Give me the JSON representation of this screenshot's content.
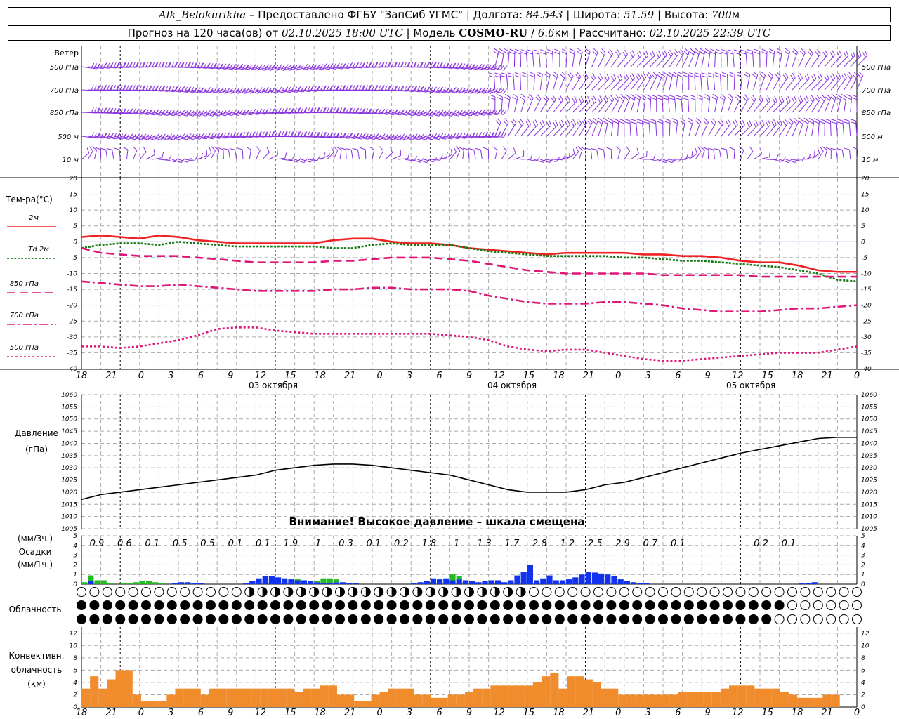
{
  "header": {
    "station": "Alk_Belokurikha",
    "provider": " – Предоставлено ФГБУ \"ЗапСиб УГМС\" | Долгота: ",
    "lon": "84.543",
    "lat_label": " | Широта: ",
    "lat": "51.59",
    "alt_label": " | Высота: ",
    "alt": "700",
    "alt_unit": "м",
    "line2_a": "Прогноз на 120 часа(ов) от ",
    "issued": "02.10.2025 18:00 UTC",
    "line2_b": " | Модель ",
    "model": "COSMO-RU",
    "line2_c": " / ",
    "res": "6.6",
    "res_unit": "км",
    "line2_d": " | Рассчитано: ",
    "computed": "02.10.2025 22:39 UTC"
  },
  "wind": {
    "title": "Ветер",
    "levels": [
      "500 гПа",
      "700 гПа",
      "850 гПа",
      "500 м",
      "10  м"
    ]
  },
  "temperature": {
    "title": "Тем-ра(°С)",
    "legend": [
      {
        "label": "2м",
        "color": "#ee2222",
        "dash": ""
      },
      {
        "label": "Td  2м",
        "color": "#117711",
        "dash": "3,2"
      },
      {
        "label": "850 гПа",
        "color": "#e0157a",
        "dash": "12,6"
      },
      {
        "label": "700 гПа",
        "color": "#e0157a",
        "dash": "12,4,3,4"
      },
      {
        "label": "500 гПа",
        "color": "#e0157a",
        "dash": "3,3"
      }
    ],
    "ticks": [
      20,
      15,
      10,
      5,
      0,
      -5,
      -10,
      -15,
      -20,
      -25,
      -30,
      -35,
      -40
    ]
  },
  "time_axis": {
    "hour_labels": [
      "18",
      "21",
      "0",
      "3",
      "6",
      "9",
      "12",
      "15",
      "18",
      "21",
      "0",
      "3",
      "6",
      "9",
      "12",
      "15",
      "18",
      "21",
      "0",
      "3",
      "6",
      "9",
      "12",
      "15",
      "18",
      "21",
      "0"
    ],
    "days": [
      "03 октября",
      "04 октября",
      "05 октября"
    ]
  },
  "pressure": {
    "title_1": "Давление",
    "title_2": "(гПа)",
    "notice": "Внимание! Высокое давление – шкала смещена",
    "ticks": [
      1060,
      1055,
      1050,
      1045,
      1040,
      1035,
      1030,
      1025,
      1020,
      1015,
      1010,
      1005
    ]
  },
  "precip": {
    "label_3h": "(мм/3ч.)",
    "title": "Осадки",
    "label_1h": "(мм/1ч.)",
    "ticks": [
      5,
      4,
      3,
      2,
      1,
      0
    ],
    "totals": [
      "0.9",
      "0.6",
      "0.1",
      "0.5",
      "0.5",
      "0.1",
      "0.1",
      "1.9",
      "1",
      "0.3",
      "0.1",
      "0.2",
      "1.8",
      "1",
      "1.3",
      "1.7",
      "2.8",
      "1.2",
      "2.5",
      "2.9",
      "0.7",
      "0.1",
      "",
      "",
      "0.2",
      "0.1",
      "",
      ""
    ]
  },
  "cloud": {
    "title": "Облачность"
  },
  "convective": {
    "title_1": "Конвективн.",
    "title_2": "облачность",
    "title_3": "(км)",
    "ticks": [
      12,
      10,
      8,
      6,
      4,
      2,
      0
    ]
  },
  "chart_data": [
    {
      "type": "line",
      "title": "Тем-ра(°С)",
      "x_hours": [
        0,
        3,
        6,
        9,
        12,
        15,
        18,
        21,
        24,
        27,
        30,
        33,
        36,
        39,
        42,
        45,
        48,
        51,
        54,
        57,
        60,
        63,
        66,
        69,
        72,
        75,
        78,
        81,
        84,
        87,
        90,
        93,
        96,
        99,
        102,
        105,
        108,
        111,
        114,
        117,
        120
      ],
      "ylim": [
        -40,
        20
      ],
      "series": [
        {
          "name": "2м",
          "values": [
            1.5,
            2,
            1.5,
            1,
            2,
            1.5,
            0.5,
            0,
            -0.5,
            -0.5,
            -0.5,
            -0.5,
            -0.5,
            0.5,
            1,
            1,
            0,
            -0.5,
            -0.5,
            -1,
            -2,
            -2.5,
            -3,
            -3.5,
            -4,
            -3.5,
            -3.5,
            -3.5,
            -3.5,
            -4,
            -4,
            -4.5,
            -4.5,
            -5,
            -6,
            -6.5,
            -6.5,
            -7.5,
            -9,
            -9.5,
            -9.5
          ]
        },
        {
          "name": "Td  2м",
          "values": [
            -2,
            -1,
            -0.5,
            -0.5,
            -1,
            0,
            -0.5,
            -1,
            -1.5,
            -1.5,
            -1.5,
            -1.5,
            -1.5,
            -2,
            -2,
            -1,
            -0.5,
            -1,
            -1,
            -1,
            -2,
            -3,
            -3.5,
            -4,
            -4.5,
            -4.5,
            -4.5,
            -4.5,
            -5,
            -5,
            -5.5,
            -6,
            -6,
            -6.5,
            -7,
            -7.5,
            -8,
            -9,
            -10,
            -12,
            -12.5
          ]
        },
        {
          "name": "850 гПа",
          "values": [
            -2,
            -3.5,
            -4,
            -4.5,
            -4.5,
            -4.5,
            -5,
            -5.5,
            -6,
            -6.5,
            -6.5,
            -6.5,
            -6.5,
            -6,
            -6,
            -5.5,
            -5,
            -5,
            -5,
            -5.5,
            -6,
            -7,
            -8,
            -9,
            -9.5,
            -10,
            -10,
            -10,
            -10,
            -10,
            -10.5,
            -10.5,
            -10.5,
            -10.5,
            -10.5,
            -11,
            -11,
            -11,
            -11,
            -11,
            -11
          ]
        },
        {
          "name": "700 гПа",
          "values": [
            -12.5,
            -13,
            -13.5,
            -14,
            -14,
            -13.5,
            -14,
            -14.5,
            -15,
            -15.5,
            -15.5,
            -15.5,
            -15.5,
            -15,
            -15,
            -14.5,
            -14.5,
            -15,
            -15,
            -15,
            -15.5,
            -17,
            -18,
            -19,
            -19.5,
            -19.5,
            -19.5,
            -19,
            -19,
            -19.5,
            -20,
            -21,
            -21.5,
            -22,
            -22,
            -22,
            -21.5,
            -21,
            -21,
            -20.5,
            -20
          ]
        },
        {
          "name": "500 гПа",
          "values": [
            -33,
            -33,
            -33.5,
            -33,
            -32,
            -31,
            -29.5,
            -27.5,
            -27,
            -27,
            -28,
            -28.5,
            -29,
            -29,
            -29,
            -29,
            -29,
            -29,
            -29,
            -29.5,
            -30,
            -31,
            -33,
            -34,
            -34.5,
            -34,
            -34,
            -35,
            -36,
            -37,
            -37.5,
            -37.5,
            -37,
            -36.5,
            -36,
            -35.5,
            -35,
            -35,
            -35,
            -34,
            -33
          ]
        }
      ]
    },
    {
      "type": "line",
      "title": "Давление",
      "x_hours": [
        0,
        3,
        6,
        9,
        12,
        15,
        18,
        21,
        24,
        27,
        30,
        33,
        36,
        39,
        42,
        45,
        48,
        51,
        54,
        57,
        60,
        63,
        66,
        69,
        72,
        75,
        78,
        81,
        84,
        87,
        90,
        93,
        96,
        99,
        102,
        105,
        108,
        111,
        114,
        117,
        120
      ],
      "ylim": [
        1005,
        1060
      ],
      "series": [
        {
          "name": "Давление",
          "values": [
            1017,
            1019,
            1020,
            1021,
            1022,
            1023,
            1024,
            1025,
            1026,
            1027,
            1029,
            1030,
            1031,
            1031.5,
            1031.5,
            1031,
            1030,
            1029,
            1028,
            1027,
            1025,
            1023,
            1021,
            1020,
            1020,
            1020,
            1021,
            1023,
            1024,
            1026,
            1028,
            1030,
            1032,
            1034,
            1036,
            1037.5,
            1039,
            1040.5,
            1042,
            1042.5,
            1042.5
          ]
        }
      ]
    },
    {
      "type": "bar",
      "title": "Осадки",
      "ylabel": "мм/1ч.",
      "ylim": [
        0,
        5
      ],
      "series": [
        {
          "name": "rain",
          "color": "#22bb22",
          "values": [
            0.2,
            0.6,
            0.4,
            0.4,
            0.1,
            0,
            0.1,
            0.1,
            0.2,
            0.3,
            0.3,
            0.2,
            0.1,
            0,
            0,
            0,
            0,
            0,
            0,
            0,
            0,
            0,
            0,
            0,
            0,
            0,
            0,
            0,
            0,
            0,
            0,
            0,
            0,
            0.1,
            0,
            0,
            0.1,
            0.5,
            0.5,
            0.3,
            0,
            0,
            0,
            0,
            0,
            0,
            0,
            0,
            0,
            0,
            0,
            0,
            0,
            0,
            0,
            0,
            0,
            0.6,
            0.3,
            0,
            0,
            0,
            0,
            0,
            0,
            0,
            0,
            0,
            0,
            0,
            0,
            0,
            0,
            0,
            0,
            0,
            0,
            0,
            0,
            0,
            0,
            0,
            0,
            0,
            0,
            0,
            0,
            0,
            0,
            0,
            0,
            0,
            0,
            0,
            0,
            0,
            0,
            0,
            0,
            0,
            0,
            0,
            0,
            0,
            0,
            0,
            0,
            0,
            0,
            0,
            0,
            0,
            0,
            0,
            0,
            0,
            0,
            0,
            0,
            0
          ]
        },
        {
          "name": "snow",
          "color": "#1133ee",
          "values": [
            0,
            0.3,
            0,
            0,
            0,
            0,
            0,
            0,
            0,
            0,
            0,
            0,
            0,
            0,
            0.1,
            0.2,
            0.2,
            0.1,
            0.1,
            0,
            0,
            0,
            0,
            0,
            0,
            0.1,
            0.3,
            0.6,
            0.8,
            0.8,
            0.7,
            0.6,
            0.5,
            0.4,
            0.4,
            0.3,
            0.2,
            0.1,
            0.1,
            0.2,
            0.2,
            0.1,
            0.1,
            0,
            0,
            0,
            0,
            0,
            0,
            0,
            0,
            0.1,
            0.2,
            0.3,
            0.6,
            0.5,
            0.6,
            0.4,
            0.5,
            0.4,
            0.3,
            0.2,
            0.3,
            0.4,
            0.4,
            0.2,
            0.4,
            0.9,
            1.3,
            2.0,
            0.4,
            0.6,
            0.9,
            0.4,
            0.4,
            0.5,
            0.7,
            1.0,
            1.3,
            1.2,
            1.1,
            1.0,
            0.8,
            0.5,
            0.3,
            0.2,
            0.1,
            0.1,
            0,
            0,
            0,
            0,
            0,
            0,
            0,
            0,
            0,
            0,
            0,
            0,
            0,
            0,
            0,
            0,
            0,
            0,
            0,
            0,
            0,
            0,
            0,
            0.1,
            0.1,
            0.2,
            0,
            0,
            0,
            0,
            0,
            0,
            0,
            0,
            0,
            0,
            0,
            0,
            0,
            0,
            0,
            0,
            0
          ]
        }
      ]
    },
    {
      "type": "bar",
      "title": "Конвективн. облачность",
      "ylabel": "км",
      "ylim": [
        0,
        13
      ],
      "values": [
        3,
        5,
        3,
        4.5,
        6,
        6,
        2,
        1,
        1,
        1,
        2,
        3,
        3,
        3,
        2,
        3,
        3,
        3,
        3,
        3,
        3,
        3,
        3,
        3,
        3,
        2.5,
        3,
        3,
        3.5,
        3.5,
        2,
        2,
        1,
        1,
        2,
        2.5,
        3,
        3,
        3,
        2,
        2,
        1.5,
        1.5,
        2,
        2,
        2.5,
        3,
        3,
        3.5,
        3.5,
        3.5,
        3.5,
        3.5,
        4,
        5,
        5.5,
        3,
        5,
        5,
        4.5,
        4,
        3,
        3,
        2,
        2,
        2,
        2,
        2,
        2,
        2,
        2.5,
        2.5,
        2.5,
        2.5,
        2.5,
        3,
        3.5,
        3.5,
        3.5,
        3,
        3,
        3,
        2.5,
        2,
        1.5,
        1.5,
        1.5,
        2,
        2,
        0,
        0
      ]
    }
  ]
}
